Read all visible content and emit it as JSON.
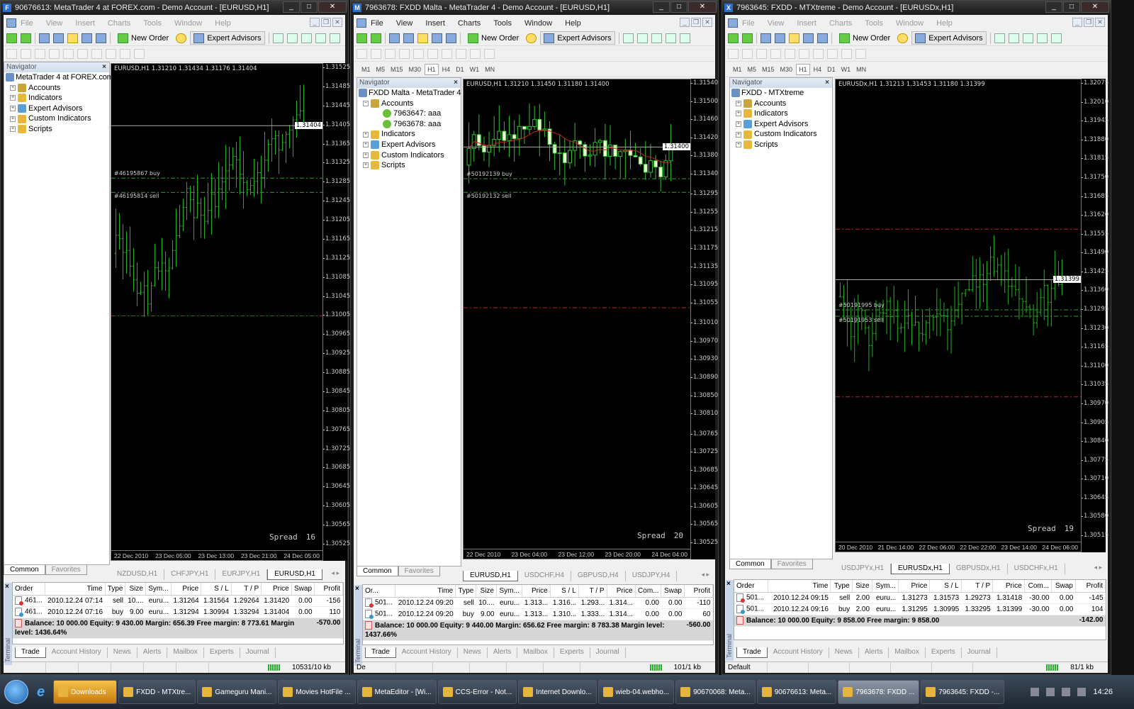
{
  "windows": [
    {
      "title": "90676613: MetaTrader 4 at FOREX.com - Demo Account - [EURUSD,H1]",
      "logo_letter": "F",
      "active": false,
      "menu": [
        "File",
        "View",
        "Insert",
        "Charts",
        "Tools",
        "Window",
        "Help"
      ],
      "toolbar": {
        "new_order": "New Order",
        "expert_advisors": "Expert Advisors"
      },
      "timeframes": [],
      "navigator": {
        "title": "Navigator",
        "root": "MetaTrader 4 at FOREX.com",
        "items": [
          "Accounts",
          "Indicators",
          "Expert Advisors",
          "Custom Indicators",
          "Scripts"
        ],
        "accounts": []
      },
      "nav_tabs": [
        "Common",
        "Favorites"
      ],
      "chart": {
        "header": "EURUSD,H1  1.31210 1.31434 1.31176 1.31404",
        "close": 1.31404,
        "high": 1.31434,
        "low": 1.31176,
        "style": "bars",
        "color": "#22b022",
        "price_labels": [
          "1.31525",
          "1.31485",
          "1.31445",
          "1.31405",
          "1.31365",
          "1.31325",
          "1.31285",
          "1.31245",
          "1.31205",
          "1.31165",
          "1.31125",
          "1.31085",
          "1.31045",
          "1.31005",
          "1.30965",
          "1.30925",
          "1.30885",
          "1.30845",
          "1.30805",
          "1.30765",
          "1.30725",
          "1.30685",
          "1.30645",
          "1.30605",
          "1.30565",
          "1.30525"
        ],
        "current_price": "1.31404",
        "time_labels": [
          "22 Dec 2010",
          "23 Dec 05:00",
          "23 Dec 13:00",
          "23 Dec 21:00",
          "24 Dec 05:00"
        ],
        "spread_label": "Spread",
        "spread_value": "16",
        "order_lines": [
          {
            "label": "#46195867 buy",
            "price": 1.31294
          },
          {
            "label": "#46195814 sell",
            "price": 1.31264
          }
        ],
        "red_lines": [
          1.31005
        ]
      },
      "chart_tabs": [
        {
          "label": "NZDUSD,H1"
        },
        {
          "label": "CHFJPY,H1"
        },
        {
          "label": "EURJPY,H1"
        },
        {
          "label": "EURUSD,H1",
          "active": true
        }
      ],
      "terminal": {
        "side_label": "Terminal",
        "columns": [
          "Order",
          "Time",
          "Type",
          "Size",
          "Sym...",
          "Price",
          "S / L",
          "T / P",
          "Price",
          "Swap",
          "Profit"
        ],
        "rows": [
          [
            "461...",
            "2010.12.24 07:14",
            "sell",
            "10....",
            "euru...",
            "1.31264",
            "1.31564",
            "1.29264",
            "1.31420",
            "0.00",
            "-156"
          ],
          [
            "461...",
            "2010.12.24 07:16",
            "buy",
            "9.00",
            "euru...",
            "1.31294",
            "1.30994",
            "1.33294",
            "1.31404",
            "0.00",
            "110"
          ]
        ],
        "summary": "Balance: 10 000.00  Equity: 9 430.00  Margin: 656.39  Free margin: 8 773.61  Margin level: 1436.64%",
        "total": "-570.00",
        "tabs": [
          "Trade",
          "Account History",
          "News",
          "Alerts",
          "Mailbox",
          "Experts",
          "Journal"
        ]
      },
      "status": {
        "left": "",
        "traffic": "10531/10 kb"
      }
    },
    {
      "title": "7963678: FXDD Malta - MetaTrader 4 - Demo Account - [EURUSD,H1]",
      "logo_letter": "M",
      "active": true,
      "menu": [
        "File",
        "View",
        "Insert",
        "Charts",
        "Tools",
        "Window",
        "Help"
      ],
      "toolbar": {
        "new_order": "New Order",
        "expert_advisors": "Expert Advisors"
      },
      "timeframes": [
        "M1",
        "M5",
        "M15",
        "M30",
        "H1",
        "H4",
        "D1",
        "W1",
        "MN"
      ],
      "navigator": {
        "title": "Navigator",
        "root": "FXDD Malta - MetaTrader 4",
        "items": [
          "Accounts",
          "Indicators",
          "Expert Advisors",
          "Custom Indicators",
          "Scripts"
        ],
        "accounts": [
          "7963647: aaa",
          "7963678: aaa"
        ]
      },
      "nav_tabs": [
        "Common",
        "Favorites"
      ],
      "chart": {
        "header": "EURUSD,H1  1.31210 1.31450 1.31180 1.31400",
        "close": 1.314,
        "high": 1.3145,
        "low": 1.3118,
        "style": "candles",
        "color": "#22b022",
        "price_labels": [
          "1.31540",
          "1.31500",
          "1.31460",
          "1.31420",
          "1.31380",
          "1.31340",
          "1.31295",
          "1.31255",
          "1.31215",
          "1.31175",
          "1.31135",
          "1.31095",
          "1.31055",
          "1.31010",
          "1.30970",
          "1.30930",
          "1.30890",
          "1.30850",
          "1.30810",
          "1.30765",
          "1.30725",
          "1.30685",
          "1.30645",
          "1.30605",
          "1.30565",
          "1.30525"
        ],
        "current_price": "1.31400",
        "time_labels": [
          "22 Dec 2010",
          "23 Dec 04:00",
          "23 Dec 12:00",
          "23 Dec 20:00",
          "24 Dec 04:00"
        ],
        "spread_label": "Spread",
        "spread_value": "20",
        "order_lines": [
          {
            "label": "#50192139 buy",
            "price": 1.3133
          },
          {
            "label": "#50192132 sell",
            "price": 1.313
          }
        ],
        "red_lines": [
          1.31045
        ]
      },
      "chart_tabs": [
        {
          "label": "EURUSD,H1",
          "active": true
        },
        {
          "label": "USDCHF,H4"
        },
        {
          "label": "GBPUSD,H4"
        },
        {
          "label": "USDJPY,H4"
        }
      ],
      "terminal": {
        "side_label": "Terminal",
        "columns": [
          "Or...",
          "Time",
          "Type",
          "Size",
          "Sym...",
          "Price",
          "S / L",
          "T / P",
          "Price",
          "Com...",
          "Swap",
          "Profit"
        ],
        "rows": [
          [
            "501...",
            "2010.12.24 09:20",
            "sell",
            "10....",
            "euru...",
            "1.313...",
            "1.316...",
            "1.293...",
            "1.314...",
            "0.00",
            "0.00",
            "-110"
          ],
          [
            "501...",
            "2010.12.24 09:20",
            "buy",
            "9.00",
            "euru...",
            "1.313...",
            "1.310...",
            "1.333...",
            "1.314...",
            "0.00",
            "0.00",
            "60"
          ]
        ],
        "summary": "Balance: 10 000.00  Equity: 9 440.00  Margin: 656.62  Free margin: 8 783.38  Margin level: 1437.66%",
        "total": "-560.00",
        "tabs": [
          "Trade",
          "Account History",
          "News",
          "Alerts",
          "Mailbox",
          "Experts",
          "Journal"
        ]
      },
      "status": {
        "left": "De",
        "traffic": "101/1 kb"
      }
    },
    {
      "title": "7963645: FXDD - MTXtreme - Demo Account - [EURUSDx,H1]",
      "logo_letter": "X",
      "active": false,
      "menu": [
        "File",
        "View",
        "Insert",
        "Charts",
        "Tools",
        "Window",
        "Help"
      ],
      "toolbar": {
        "new_order": "New Order",
        "expert_advisors": "Expert Advisors"
      },
      "timeframes": [
        "M1",
        "M5",
        "M15",
        "M30",
        "H1",
        "H4",
        "D1",
        "W1",
        "MN"
      ],
      "navigator": {
        "title": "Navigator",
        "root": "FXDD - MTXtreme",
        "items": [
          "Accounts",
          "Indicators",
          "Expert Advisors",
          "Custom Indicators",
          "Scripts"
        ],
        "accounts": []
      },
      "nav_tabs": [
        "Common",
        "Favorites"
      ],
      "chart": {
        "header": "EURUSDx,H1  1.31213 1.31453 1.31180 1.31399",
        "close": 1.31399,
        "high": 1.31453,
        "low": 1.3118,
        "style": "bars",
        "color": "#22b022",
        "price_labels": [
          "1.32075",
          "1.32010",
          "1.31945",
          "1.31880",
          "1.31815",
          "1.31750",
          "1.31685",
          "1.31620",
          "1.31555",
          "1.31490",
          "1.31425",
          "1.31360",
          "1.31295",
          "1.31230",
          "1.31165",
          "1.31100",
          "1.31035",
          "1.30970",
          "1.30905",
          "1.30840",
          "1.30775",
          "1.30710",
          "1.30645",
          "1.30580",
          "1.30515"
        ],
        "current_price": "1.31399",
        "time_labels": [
          "20 Dec 2010",
          "21 Dec 14:00",
          "22 Dec 06:00",
          "22 Dec 22:00",
          "23 Dec 14:00",
          "24 Dec 06:00"
        ],
        "spread_label": "Spread",
        "spread_value": "19",
        "order_lines": [
          {
            "label": "#50191995 buy",
            "price": 1.31295
          },
          {
            "label": "#50191953 sell",
            "price": 1.31273
          }
        ],
        "red_lines": [
          1.31573,
          1.30995
        ]
      },
      "chart_tabs": [
        {
          "label": "USDJPYx,H1"
        },
        {
          "label": "EURUSDx,H1",
          "active": true
        },
        {
          "label": "GBPUSDx,H1"
        },
        {
          "label": "USDCHFx,H1"
        }
      ],
      "terminal": {
        "side_label": "Terminal",
        "columns": [
          "Order",
          "Time",
          "Type",
          "Size",
          "Sym...",
          "Price",
          "S / L",
          "T / P",
          "Price",
          "Com...",
          "Swap",
          "Profit"
        ],
        "rows": [
          [
            "501...",
            "2010.12.24 09:15",
            "sell",
            "2.00",
            "euru...",
            "1.31273",
            "1.31573",
            "1.29273",
            "1.31418",
            "-30.00",
            "0.00",
            "-145"
          ],
          [
            "501...",
            "2010.12.24 09:16",
            "buy",
            "2.00",
            "euru...",
            "1.31295",
            "1.30995",
            "1.33295",
            "1.31399",
            "-30.00",
            "0.00",
            "104"
          ]
        ],
        "summary": "Balance: 10 000.00  Equity: 9 858.00  Free margin: 9 858.00",
        "total": "-142.00",
        "tabs": [
          "Trade",
          "Account History",
          "News",
          "Alerts",
          "Mailbox",
          "Experts",
          "Journal"
        ]
      },
      "status": {
        "left": "Default",
        "traffic": "81/1 kb"
      }
    }
  ],
  "taskbar": {
    "items": [
      "Downloads",
      "FXDD - MTXtre...",
      "Gameguru Mani...",
      "Movies HotFile ...",
      "MetaEditor - [Wi...",
      "CCS-Error - Not...",
      "Internet Downlo...",
      "wieb-04.webho...",
      "90670068: Meta...",
      "90676613: Meta...",
      "7963678: FXDD ...",
      "7963645: FXDD -..."
    ],
    "highlighted": "Downloads",
    "active": "7963678: FXDD ...",
    "clock": "14:26"
  }
}
